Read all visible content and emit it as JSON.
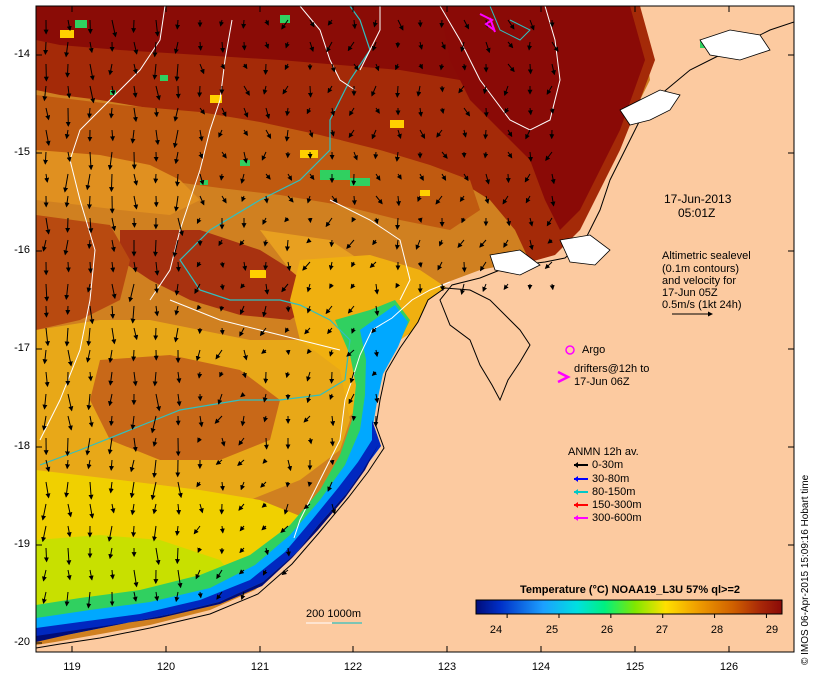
{
  "map": {
    "date": "17-Jun-2013",
    "time": "05:01Z",
    "lat_ticks": [
      "-14",
      "-15",
      "-16",
      "-17",
      "-18",
      "-19",
      "-20"
    ],
    "lon_ticks": [
      "119",
      "120",
      "121",
      "122",
      "123",
      "124",
      "125",
      "126"
    ],
    "land_color": "#fccaa0",
    "sst_colors": [
      "#000c7a",
      "#0030c8",
      "#1ca0ff",
      "#00ff80",
      "#40e040",
      "#c8e800",
      "#ffd000",
      "#f0a000",
      "#d06800",
      "#b03810",
      "#8a0a08"
    ]
  },
  "annotations": {
    "sealevel": [
      "Altimetric sealevel",
      "(0.1m contours)",
      "and velocity for",
      "17-Jun 05Z",
      "0.5m/s (1kt 24h)"
    ],
    "argo": "Argo",
    "drifters": [
      "drifters@12h to",
      "17-Jun 06Z"
    ],
    "depth": "200  1000m"
  },
  "anmn": {
    "title": "ANMN 12h av.",
    "items": [
      {
        "label": "0-30m",
        "color": "#000000"
      },
      {
        "label": "30-80m",
        "color": "#0000ff"
      },
      {
        "label": "80-150m",
        "color": "#00c8c8"
      },
      {
        "label": "150-300m",
        "color": "#ff0000"
      },
      {
        "label": "300-600m",
        "color": "#ff00ff"
      }
    ]
  },
  "colorbar": {
    "title": "Temperature (°C) NOAA19_L3U 57% ql>=2",
    "ticks": [
      "24",
      "25",
      "26",
      "27",
      "28",
      "29"
    ],
    "range": [
      23.4,
      29.3
    ]
  },
  "credit": "© IMOS 06-Apr-2015 15:09:16 Hobart time"
}
